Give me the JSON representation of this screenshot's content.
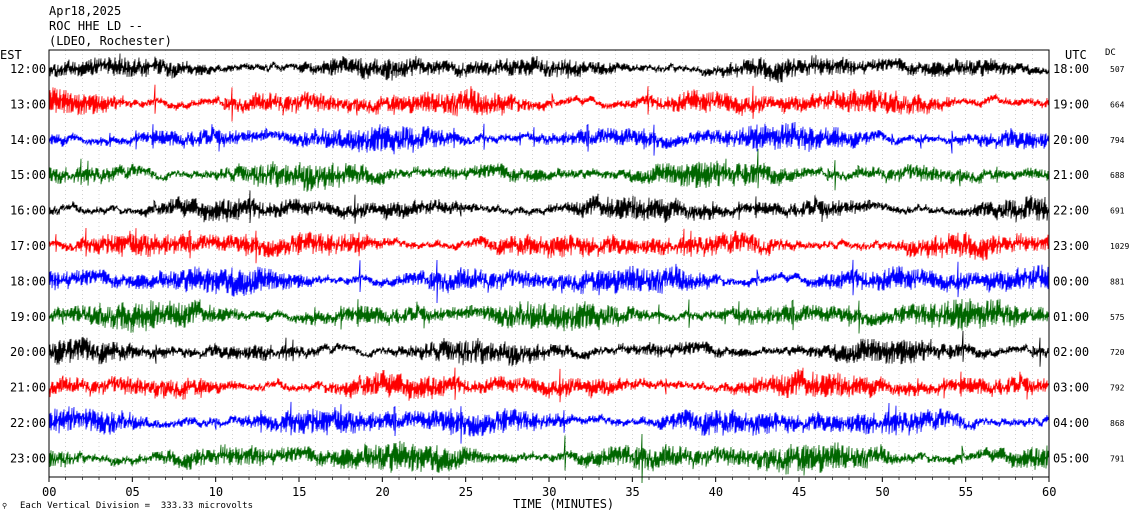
{
  "header": {
    "date": "Apr18,2025",
    "station": "ROC HHE LD --",
    "network": "(LDEO, Rochester)"
  },
  "axis_labels": {
    "left": "EST",
    "right": "UTC",
    "dc": "DC",
    "x_title": "TIME (MINUTES)"
  },
  "footer": {
    "scale": "Each Vertical Division =  333.33 microvolts"
  },
  "colors": {
    "trace_cycle": [
      "#000000",
      "#ff0000",
      "#0000ff",
      "#006600"
    ],
    "frame": "#000000",
    "grid": "#888888"
  },
  "chart_data": {
    "type": "line",
    "title": "",
    "xlabel": "TIME (MINUTES)",
    "ylabel": "",
    "xlim": [
      0,
      60
    ],
    "x_ticks": [
      0,
      5,
      10,
      15,
      20,
      25,
      30,
      35,
      40,
      45,
      50,
      55,
      60
    ],
    "x_tick_labels": [
      "00",
      "05",
      "10",
      "15",
      "20",
      "25",
      "30",
      "35",
      "40",
      "45",
      "50",
      "55",
      "60"
    ],
    "grid": true,
    "series": [
      {
        "est": "12:00",
        "utc": "18:00",
        "dc": "507",
        "color": "#000000",
        "activity": 0.5
      },
      {
        "est": "13:00",
        "utc": "19:00",
        "dc": "664",
        "color": "#ff0000",
        "activity": 0.6
      },
      {
        "est": "14:00",
        "utc": "20:00",
        "dc": "794",
        "color": "#0000ff",
        "activity": 0.6
      },
      {
        "est": "15:00",
        "utc": "21:00",
        "dc": "688",
        "color": "#006600",
        "activity": 0.6
      },
      {
        "est": "16:00",
        "utc": "22:00",
        "dc": "691",
        "color": "#000000",
        "activity": 0.5
      },
      {
        "est": "17:00",
        "utc": "23:00",
        "dc": "1029",
        "color": "#ff0000",
        "activity": 0.6
      },
      {
        "est": "18:00",
        "utc": "00:00",
        "dc": "881",
        "color": "#0000ff",
        "activity": 0.7
      },
      {
        "est": "19:00",
        "utc": "01:00",
        "dc": "575",
        "color": "#006600",
        "activity": 0.7
      },
      {
        "est": "20:00",
        "utc": "02:00",
        "dc": "720",
        "color": "#000000",
        "activity": 0.5
      },
      {
        "est": "21:00",
        "utc": "03:00",
        "dc": "792",
        "color": "#ff0000",
        "activity": 0.6
      },
      {
        "est": "22:00",
        "utc": "04:00",
        "dc": "868",
        "color": "#0000ff",
        "activity": 0.7
      },
      {
        "est": "23:00",
        "utc": "05:00",
        "dc": "791",
        "color": "#006600",
        "activity": 0.8
      }
    ]
  }
}
